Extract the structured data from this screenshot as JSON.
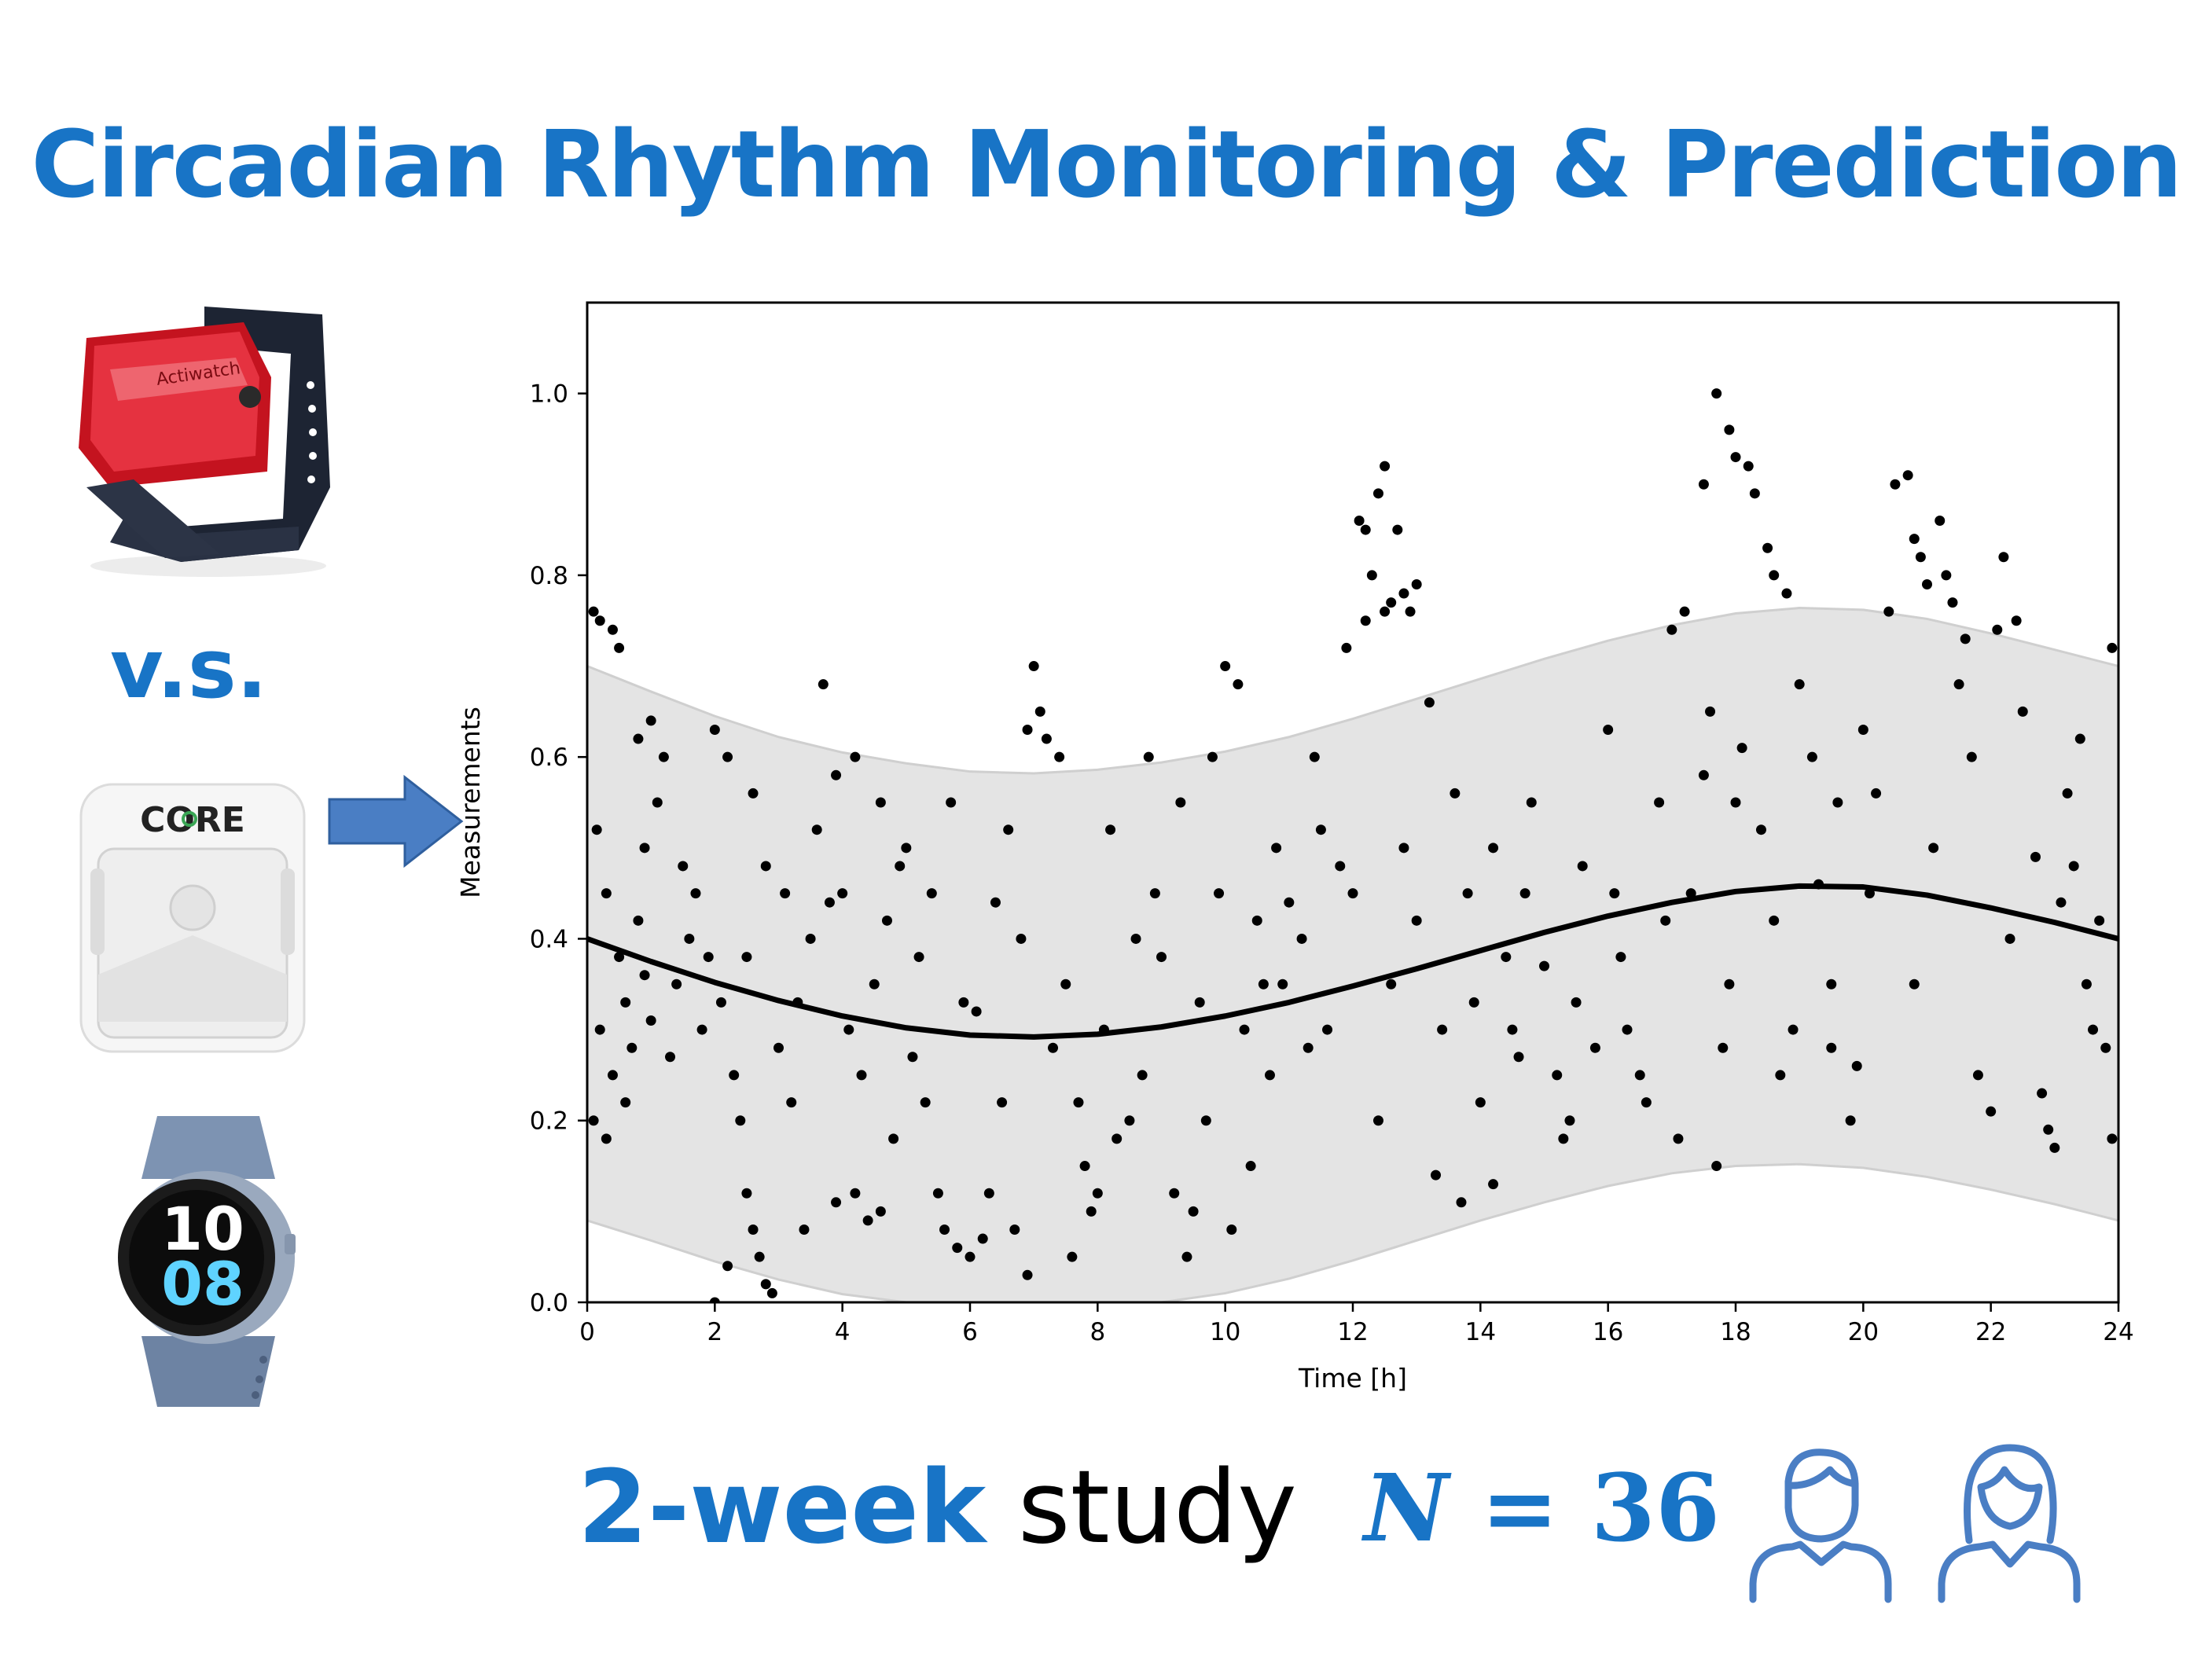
{
  "title": "Circadian Rhythm Monitoring & Prediction",
  "devices": [
    {
      "name": "actigraph-wristband",
      "label": "Actiwatch"
    },
    {
      "name": "core-body-temp-sensor",
      "label": "CORE"
    },
    {
      "name": "smartwatch",
      "label": "10 08"
    }
  ],
  "vs_label": "v.s.",
  "footer": {
    "study_duration": "2-week",
    "study_word": "study",
    "n_variable": "N",
    "n_equals": " = ",
    "n_value": "36"
  },
  "colors": {
    "accent": "#1874C6",
    "band": "#e4e4e4",
    "band_edge": "#cfcfcf",
    "points": "#000000",
    "curve": "#000000",
    "arrow": "#4A7EC4"
  },
  "icons": [
    "male-user-icon",
    "female-user-icon",
    "right-arrow-icon"
  ],
  "chart_data": {
    "type": "scatter",
    "xlabel": "Time [h]",
    "ylabel": "Measurements",
    "xlim": [
      0,
      24
    ],
    "ylim": [
      0,
      1.1
    ],
    "xticks": [
      "0",
      "2",
      "4",
      "6",
      "8",
      "10",
      "12",
      "14",
      "16",
      "18",
      "20",
      "22",
      "24"
    ],
    "yticks": [
      "0.0",
      "0.2",
      "0.4",
      "0.6",
      "0.8",
      "1.0"
    ],
    "grid": false,
    "fit_curve": {
      "x": [
        0,
        1,
        2,
        3,
        4,
        5,
        6,
        7,
        8,
        9,
        10,
        11,
        12,
        13,
        14,
        15,
        16,
        17,
        18,
        19,
        20,
        21,
        22,
        23,
        24
      ],
      "y": [
        0.4,
        0.375,
        0.352,
        0.332,
        0.315,
        0.302,
        0.294,
        0.292,
        0.295,
        0.303,
        0.315,
        0.33,
        0.348,
        0.367,
        0.387,
        0.407,
        0.425,
        0.44,
        0.452,
        0.458,
        0.457,
        0.448,
        0.434,
        0.418,
        0.4
      ]
    },
    "band_upper": {
      "x": [
        0,
        1,
        2,
        3,
        4,
        5,
        6,
        7,
        8,
        9,
        10,
        11,
        12,
        13,
        14,
        15,
        16,
        17,
        18,
        19,
        20,
        21,
        22,
        23,
        24
      ],
      "y": [
        0.7,
        0.672,
        0.645,
        0.622,
        0.605,
        0.593,
        0.584,
        0.582,
        0.586,
        0.594,
        0.606,
        0.622,
        0.642,
        0.664,
        0.686,
        0.708,
        0.728,
        0.745,
        0.758,
        0.764,
        0.762,
        0.752,
        0.736,
        0.718,
        0.7
      ]
    },
    "band_lower": {
      "x": [
        0,
        1,
        2,
        3,
        4,
        5,
        6,
        7,
        8,
        9,
        10,
        11,
        12,
        13,
        14,
        15,
        16,
        17,
        18,
        19,
        20,
        21,
        22,
        23,
        24
      ],
      "y": [
        0.09,
        0.068,
        0.045,
        0.025,
        0.009,
        -0.004,
        -0.012,
        -0.014,
        -0.01,
        -0.002,
        0.01,
        0.026,
        0.046,
        0.068,
        0.09,
        0.11,
        0.128,
        0.142,
        0.15,
        0.152,
        0.148,
        0.138,
        0.124,
        0.108,
        0.09
      ],
      "clip_at_zero": true
    },
    "points": [
      [
        0.1,
        0.76
      ],
      [
        0.2,
        0.75
      ],
      [
        0.5,
        0.72
      ],
      [
        0.4,
        0.74
      ],
      [
        0.15,
        0.52
      ],
      [
        0.3,
        0.45
      ],
      [
        0.5,
        0.38
      ],
      [
        0.2,
        0.3
      ],
      [
        0.4,
        0.25
      ],
      [
        0.1,
        0.2
      ],
      [
        0.3,
        0.18
      ],
      [
        0.6,
        0.33
      ],
      [
        0.7,
        0.28
      ],
      [
        0.8,
        0.42
      ],
      [
        0.9,
        0.36
      ],
      [
        1.0,
        0.31
      ],
      [
        1.1,
        0.55
      ],
      [
        1.2,
        0.6
      ],
      [
        1.3,
        0.27
      ],
      [
        0.6,
        0.22
      ],
      [
        0.8,
        0.62
      ],
      [
        1.0,
        0.64
      ],
      [
        1.4,
        0.35
      ],
      [
        1.5,
        0.48
      ],
      [
        1.6,
        0.4
      ],
      [
        1.8,
        0.3
      ],
      [
        1.9,
        0.38
      ],
      [
        2.0,
        0.63
      ],
      [
        2.2,
        0.6
      ],
      [
        2.1,
        0.33
      ],
      [
        2.3,
        0.25
      ],
      [
        2.4,
        0.2
      ],
      [
        2.5,
        0.12
      ],
      [
        2.6,
        0.08
      ],
      [
        2.7,
        0.05
      ],
      [
        2.8,
        0.02
      ],
      [
        2.9,
        0.01
      ],
      [
        2.2,
        0.04
      ],
      [
        2.0,
        0.0
      ],
      [
        3.0,
        0.28
      ],
      [
        3.2,
        0.22
      ],
      [
        3.1,
        0.45
      ],
      [
        2.6,
        0.56
      ],
      [
        2.8,
        0.48
      ],
      [
        3.5,
        0.4
      ],
      [
        3.6,
        0.52
      ],
      [
        3.8,
        0.44
      ],
      [
        3.9,
        0.58
      ],
      [
        3.7,
        0.68
      ],
      [
        4.0,
        0.45
      ],
      [
        4.1,
        0.3
      ],
      [
        4.3,
        0.25
      ],
      [
        4.2,
        0.12
      ],
      [
        4.4,
        0.09
      ],
      [
        4.6,
        0.1
      ],
      [
        4.8,
        0.18
      ],
      [
        4.5,
        0.35
      ],
      [
        4.7,
        0.42
      ],
      [
        4.9,
        0.48
      ],
      [
        4.2,
        0.6
      ],
      [
        4.6,
        0.55
      ],
      [
        3.4,
        0.08
      ],
      [
        3.9,
        0.11
      ],
      [
        5.0,
        0.5
      ],
      [
        5.2,
        0.38
      ],
      [
        5.3,
        0.22
      ],
      [
        5.5,
        0.12
      ],
      [
        5.6,
        0.08
      ],
      [
        5.8,
        0.06
      ],
      [
        5.9,
        0.33
      ],
      [
        5.4,
        0.45
      ],
      [
        5.7,
        0.55
      ],
      [
        6.0,
        0.05
      ],
      [
        6.2,
        0.07
      ],
      [
        6.3,
        0.12
      ],
      [
        6.5,
        0.22
      ],
      [
        6.4,
        0.44
      ],
      [
        6.6,
        0.52
      ],
      [
        6.8,
        0.4
      ],
      [
        6.9,
        0.63
      ],
      [
        7.0,
        0.7
      ],
      [
        7.1,
        0.65
      ],
      [
        7.2,
        0.62
      ],
      [
        6.7,
        0.08
      ],
      [
        6.9,
        0.03
      ],
      [
        7.4,
        0.6
      ],
      [
        7.5,
        0.35
      ],
      [
        7.7,
        0.22
      ],
      [
        7.8,
        0.15
      ],
      [
        7.6,
        0.05
      ],
      [
        7.9,
        0.1
      ],
      [
        8.1,
        0.3
      ],
      [
        8.2,
        0.52
      ],
      [
        8.3,
        0.18
      ],
      [
        8.5,
        0.2
      ],
      [
        8.7,
        0.25
      ],
      [
        8.8,
        0.6
      ],
      [
        8.9,
        0.45
      ],
      [
        9.0,
        0.38
      ],
      [
        9.2,
        0.12
      ],
      [
        9.4,
        0.05
      ],
      [
        9.5,
        0.1
      ],
      [
        9.3,
        0.55
      ],
      [
        9.6,
        0.33
      ],
      [
        8.0,
        0.12
      ],
      [
        9.8,
        0.6
      ],
      [
        9.9,
        0.45
      ],
      [
        10.0,
        0.7
      ],
      [
        10.2,
        0.68
      ],
      [
        10.1,
        0.08
      ],
      [
        10.3,
        0.3
      ],
      [
        10.5,
        0.42
      ],
      [
        10.6,
        0.35
      ],
      [
        10.8,
        0.5
      ],
      [
        11.0,
        0.44
      ],
      [
        11.2,
        0.4
      ],
      [
        11.3,
        0.28
      ],
      [
        11.5,
        0.52
      ],
      [
        11.6,
        0.3
      ],
      [
        11.8,
        0.48
      ],
      [
        10.4,
        0.15
      ],
      [
        10.7,
        0.25
      ],
      [
        11.9,
        0.72
      ],
      [
        12.1,
        0.86
      ],
      [
        12.2,
        0.85
      ],
      [
        12.4,
        0.89
      ],
      [
        12.5,
        0.92
      ],
      [
        12.3,
        0.8
      ],
      [
        12.6,
        0.77
      ],
      [
        12.7,
        0.85
      ],
      [
        12.8,
        0.78
      ],
      [
        12.9,
        0.76
      ],
      [
        13.0,
        0.79
      ],
      [
        12.2,
        0.75
      ],
      [
        12.5,
        0.76
      ],
      [
        12.0,
        0.45
      ],
      [
        12.4,
        0.2
      ],
      [
        12.6,
        0.35
      ],
      [
        12.8,
        0.5
      ],
      [
        13.0,
        0.42
      ],
      [
        13.2,
        0.66
      ],
      [
        13.3,
        0.14
      ],
      [
        13.4,
        0.3
      ],
      [
        13.6,
        0.56
      ],
      [
        13.8,
        0.45
      ],
      [
        14.0,
        0.22
      ],
      [
        13.7,
        0.11
      ],
      [
        14.2,
        0.5
      ],
      [
        14.4,
        0.38
      ],
      [
        14.5,
        0.3
      ],
      [
        14.7,
        0.45
      ],
      [
        14.8,
        0.55
      ],
      [
        15.0,
        0.37
      ],
      [
        15.2,
        0.25
      ],
      [
        15.3,
        0.18
      ],
      [
        15.5,
        0.33
      ],
      [
        15.6,
        0.48
      ],
      [
        15.8,
        0.28
      ],
      [
        14.2,
        0.13
      ],
      [
        16.0,
        0.63
      ],
      [
        16.1,
        0.45
      ],
      [
        16.3,
        0.3
      ],
      [
        16.5,
        0.25
      ],
      [
        16.6,
        0.22
      ],
      [
        16.8,
        0.55
      ],
      [
        17.0,
        0.74
      ],
      [
        17.2,
        0.76
      ],
      [
        17.1,
        0.18
      ],
      [
        17.3,
        0.45
      ],
      [
        17.5,
        0.58
      ],
      [
        17.6,
        0.65
      ],
      [
        17.7,
        0.15
      ],
      [
        17.8,
        0.28
      ],
      [
        17.9,
        0.35
      ],
      [
        18.0,
        0.55
      ],
      [
        16.2,
        0.38
      ],
      [
        17.7,
        1.0
      ],
      [
        17.9,
        0.96
      ],
      [
        18.0,
        0.93
      ],
      [
        18.2,
        0.92
      ],
      [
        18.3,
        0.89
      ],
      [
        18.5,
        0.83
      ],
      [
        18.6,
        0.8
      ],
      [
        18.8,
        0.78
      ],
      [
        17.5,
        0.9
      ],
      [
        18.1,
        0.61
      ],
      [
        18.4,
        0.52
      ],
      [
        18.6,
        0.42
      ],
      [
        18.7,
        0.25
      ],
      [
        18.9,
        0.3
      ],
      [
        19.0,
        0.68
      ],
      [
        19.2,
        0.6
      ],
      [
        19.3,
        0.46
      ],
      [
        19.5,
        0.35
      ],
      [
        19.6,
        0.55
      ],
      [
        19.8,
        0.2
      ],
      [
        19.9,
        0.26
      ],
      [
        20.0,
        0.63
      ],
      [
        20.2,
        0.56
      ],
      [
        20.1,
        0.45
      ],
      [
        20.4,
        0.76
      ],
      [
        20.5,
        0.9
      ],
      [
        20.7,
        0.91
      ],
      [
        20.8,
        0.84
      ],
      [
        20.9,
        0.82
      ],
      [
        21.0,
        0.79
      ],
      [
        21.2,
        0.86
      ],
      [
        21.3,
        0.8
      ],
      [
        21.4,
        0.77
      ],
      [
        21.6,
        0.73
      ],
      [
        21.5,
        0.68
      ],
      [
        21.7,
        0.6
      ],
      [
        21.8,
        0.25
      ],
      [
        22.0,
        0.21
      ],
      [
        22.1,
        0.74
      ],
      [
        22.2,
        0.82
      ],
      [
        22.4,
        0.75
      ],
      [
        22.5,
        0.65
      ],
      [
        22.7,
        0.49
      ],
      [
        22.8,
        0.23
      ],
      [
        22.9,
        0.19
      ],
      [
        23.0,
        0.17
      ],
      [
        23.2,
        0.56
      ],
      [
        23.3,
        0.48
      ],
      [
        23.5,
        0.35
      ],
      [
        23.6,
        0.3
      ],
      [
        23.8,
        0.28
      ],
      [
        23.9,
        0.72
      ],
      [
        23.9,
        0.18
      ],
      [
        23.7,
        0.42
      ],
      [
        23.4,
        0.62
      ],
      [
        19.5,
        0.28
      ],
      [
        20.8,
        0.35
      ],
      [
        21.1,
        0.5
      ],
      [
        22.3,
        0.4
      ],
      [
        23.1,
        0.44
      ],
      [
        16.9,
        0.42
      ],
      [
        15.4,
        0.2
      ],
      [
        14.6,
        0.27
      ],
      [
        13.9,
        0.33
      ],
      [
        11.4,
        0.6
      ],
      [
        10.9,
        0.35
      ],
      [
        9.7,
        0.2
      ],
      [
        8.6,
        0.4
      ],
      [
        7.3,
        0.28
      ],
      [
        6.1,
        0.32
      ],
      [
        5.1,
        0.27
      ],
      [
        3.3,
        0.33
      ],
      [
        2.5,
        0.38
      ],
      [
        1.7,
        0.45
      ],
      [
        0.9,
        0.5
      ]
    ]
  }
}
